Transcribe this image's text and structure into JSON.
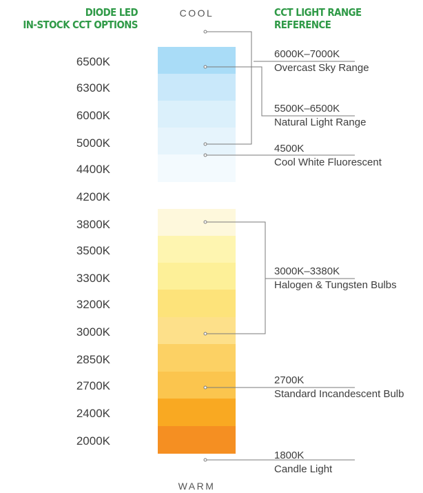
{
  "headers": {
    "left_line1": "DIODE LED",
    "left_line2": "IN-STOCK CCT OPTIONS",
    "right_line1": "CCT LIGHT RANGE",
    "right_line2": "REFERENCE"
  },
  "axis": {
    "top": "COOL",
    "bottom": "WARM"
  },
  "cct_options": [
    "6500K",
    "6300K",
    "6000K",
    "5000K",
    "4400K",
    "4200K",
    "3800K",
    "3500K",
    "3300K",
    "3200K",
    "3000K",
    "2850K",
    "2700K",
    "2400K",
    "2000K"
  ],
  "swatch_colors": {
    "cool": [
      "#a9dcf7",
      "#c9e8fa",
      "#dbf0fb",
      "#e6f4fc",
      "#f3fafe"
    ],
    "warm": [
      "#fef8dc",
      "#fef5b0",
      "#fdf098",
      "#fde37a",
      "#fde08a",
      "#fcd164",
      "#fbc54e",
      "#f9a922",
      "#f58f22"
    ]
  },
  "references": [
    {
      "range": "6000K–7000K",
      "desc": "Overcast Sky Range"
    },
    {
      "range": "5500K–6500K",
      "desc": "Natural Light Range"
    },
    {
      "range": "4500K",
      "desc": "Cool White Fluorescent"
    },
    {
      "range": "3000K–3380K",
      "desc": "Halogen & Tungsten Bulbs"
    },
    {
      "range": "2700K",
      "desc": "Standard Incandescent Bulb"
    },
    {
      "range": "1800K",
      "desc": "Candle Light"
    }
  ],
  "colors": {
    "header_green": "#2f9a47",
    "line_gray": "#7a7a7a"
  }
}
